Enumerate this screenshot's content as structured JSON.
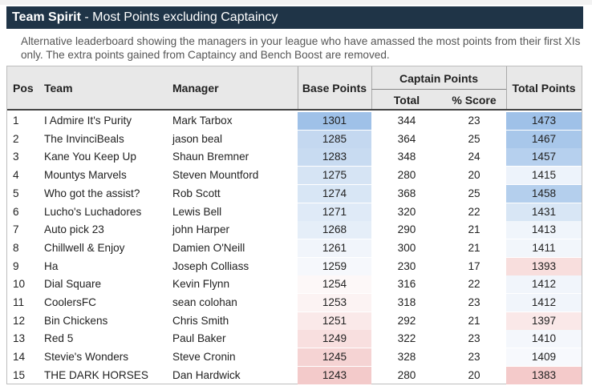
{
  "title": {
    "bold": "Team Spirit",
    "rest": " - Most Points excluding Captaincy"
  },
  "description": "Alternative leaderboard showing the managers in your league who have amassed the most points from their first XIs only. The extra points gained from Captaincy and Bench Boost are removed.",
  "table": {
    "headers": {
      "pos": "Pos",
      "team": "Team",
      "manager": "Manager",
      "base_points": "Base Points",
      "captain_points": "Captain Points",
      "total": "Total",
      "pct_score": "% Score",
      "total_points": "Total Points"
    },
    "rows": [
      {
        "pos": "1",
        "team": "I Admire It's Purity",
        "manager": "Mark Tarbox",
        "base": "1301",
        "cap_total": "344",
        "pct": "23",
        "total": "1473",
        "base_color": "#9fc1e8",
        "total_color": "#9fc1e8"
      },
      {
        "pos": "2",
        "team": "The InvinciBeals",
        "manager": "jason beal",
        "base": "1285",
        "cap_total": "364",
        "pct": "25",
        "total": "1467",
        "base_color": "#c4d8f0",
        "total_color": "#a8c7ea"
      },
      {
        "pos": "3",
        "team": "Kane You Keep Up",
        "manager": "Shaun Bremner",
        "base": "1283",
        "cap_total": "348",
        "pct": "24",
        "total": "1457",
        "base_color": "#c8dbf1",
        "total_color": "#b6d0ee"
      },
      {
        "pos": "4",
        "team": "Mountys Marvels",
        "manager": "Steven Mountford",
        "base": "1275",
        "cap_total": "280",
        "pct": "20",
        "total": "1415",
        "base_color": "#d6e4f4",
        "total_color": "#edf3fb"
      },
      {
        "pos": "5",
        "team": "Who got the assist?",
        "manager": "Rob Scott",
        "base": "1274",
        "cap_total": "368",
        "pct": "25",
        "total": "1458",
        "base_color": "#d8e6f5",
        "total_color": "#b4cfed"
      },
      {
        "pos": "6",
        "team": "Lucho's Luchadores",
        "manager": "Lewis Bell",
        "base": "1271",
        "cap_total": "320",
        "pct": "22",
        "total": "1431",
        "base_color": "#dfeaf7",
        "total_color": "#d8e6f5"
      },
      {
        "pos": "7",
        "team": "Auto pick 23",
        "manager": "john Harper",
        "base": "1268",
        "cap_total": "290",
        "pct": "21",
        "total": "1413",
        "base_color": "#e5eef8",
        "total_color": "#f0f5fb"
      },
      {
        "pos": "8",
        "team": "Chillwell & Enjoy",
        "manager": "Damien O'Neill",
        "base": "1261",
        "cap_total": "300",
        "pct": "21",
        "total": "1411",
        "base_color": "#f1f5fb",
        "total_color": "#f2f6fb"
      },
      {
        "pos": "9",
        "team": "Ha",
        "manager": "Joseph Colliass",
        "base": "1259",
        "cap_total": "230",
        "pct": "17",
        "total": "1393",
        "base_color": "#f6f8fc",
        "total_color": "#f8dedd"
      },
      {
        "pos": "10",
        "team": "Dial Square",
        "manager": "Kevin Flynn",
        "base": "1254",
        "cap_total": "316",
        "pct": "22",
        "total": "1412",
        "base_color": "#fdf8f8",
        "total_color": "#f1f5fb"
      },
      {
        "pos": "11",
        "team": "CoolersFC",
        "manager": "sean colohan",
        "base": "1253",
        "cap_total": "318",
        "pct": "23",
        "total": "1412",
        "base_color": "#fcf3f3",
        "total_color": "#f1f5fb"
      },
      {
        "pos": "12",
        "team": "Bin Chickens",
        "manager": "Chris Smith",
        "base": "1251",
        "cap_total": "292",
        "pct": "21",
        "total": "1397",
        "base_color": "#fae9e9",
        "total_color": "#fae8e8"
      },
      {
        "pos": "13",
        "team": "Red 5",
        "manager": "Paul Baker",
        "base": "1249",
        "cap_total": "322",
        "pct": "23",
        "total": "1410",
        "base_color": "#f8dfdf",
        "total_color": "#f4f7fc"
      },
      {
        "pos": "14",
        "team": "Stevie's Wonders",
        "manager": "Steve Cronin",
        "base": "1245",
        "cap_total": "328",
        "pct": "23",
        "total": "1409",
        "base_color": "#f5d3d3",
        "total_color": "#f7f9fd"
      },
      {
        "pos": "15",
        "team": "THE DARK HORSES",
        "manager": "Dan Hardwick",
        "base": "1243",
        "cap_total": "280",
        "pct": "20",
        "total": "1383",
        "base_color": "#f3caca",
        "total_color": "#f4caca"
      }
    ]
  }
}
